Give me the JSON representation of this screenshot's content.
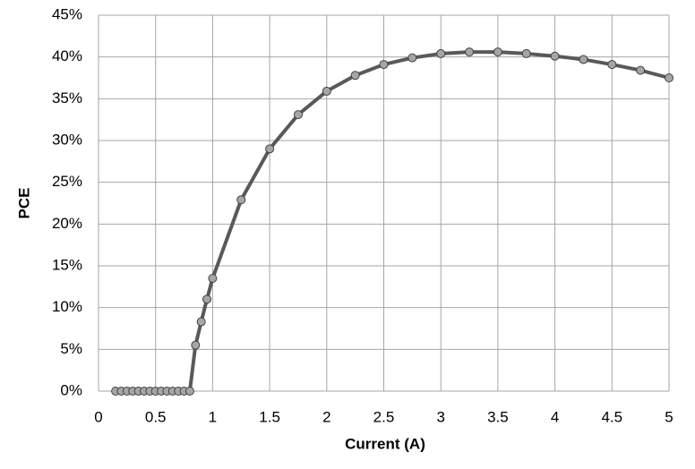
{
  "chart_data": {
    "type": "line",
    "xlabel": "Current (A)",
    "ylabel": "PCE",
    "x": [
      0.15,
      0.2,
      0.25,
      0.3,
      0.35,
      0.4,
      0.45,
      0.5,
      0.55,
      0.6,
      0.65,
      0.7,
      0.75,
      0.8,
      0.85,
      0.9,
      0.95,
      1.0,
      1.25,
      1.5,
      1.75,
      2.0,
      2.25,
      2.5,
      2.75,
      3.0,
      3.25,
      3.5,
      3.75,
      4.0,
      4.25,
      4.5,
      4.75,
      5.0
    ],
    "series": [
      {
        "color": "#595959",
        "marker_color": "#a6a6a6",
        "values": [
          0,
          0,
          0,
          0,
          0,
          0,
          0,
          0,
          0,
          0,
          0,
          0,
          0,
          0,
          5.5,
          8.3,
          11,
          13.5,
          22.9,
          29,
          33.1,
          35.9,
          37.8,
          39.1,
          39.9,
          40.4,
          40.6,
          40.6,
          40.4,
          40.1,
          39.7,
          39.1,
          38.4,
          37.5
        ]
      }
    ],
    "xlim": [
      0,
      5
    ],
    "xticks": [
      0,
      0.5,
      1,
      1.5,
      2,
      2.5,
      3,
      3.5,
      4,
      4.5,
      5
    ],
    "ylim": [
      0,
      45
    ],
    "yticks": [
      {
        "value": 0,
        "label": "0%"
      },
      {
        "value": 5,
        "label": "5%"
      },
      {
        "value": 10,
        "label": "10%"
      },
      {
        "value": 15,
        "label": "15%"
      },
      {
        "value": 20,
        "label": "20%"
      },
      {
        "value": 25,
        "label": "25%"
      },
      {
        "value": 30,
        "label": "30%"
      },
      {
        "value": 35,
        "label": "35%"
      },
      {
        "value": 40,
        "label": "40%"
      },
      {
        "value": 45,
        "label": "45%"
      }
    ],
    "grid": true
  }
}
